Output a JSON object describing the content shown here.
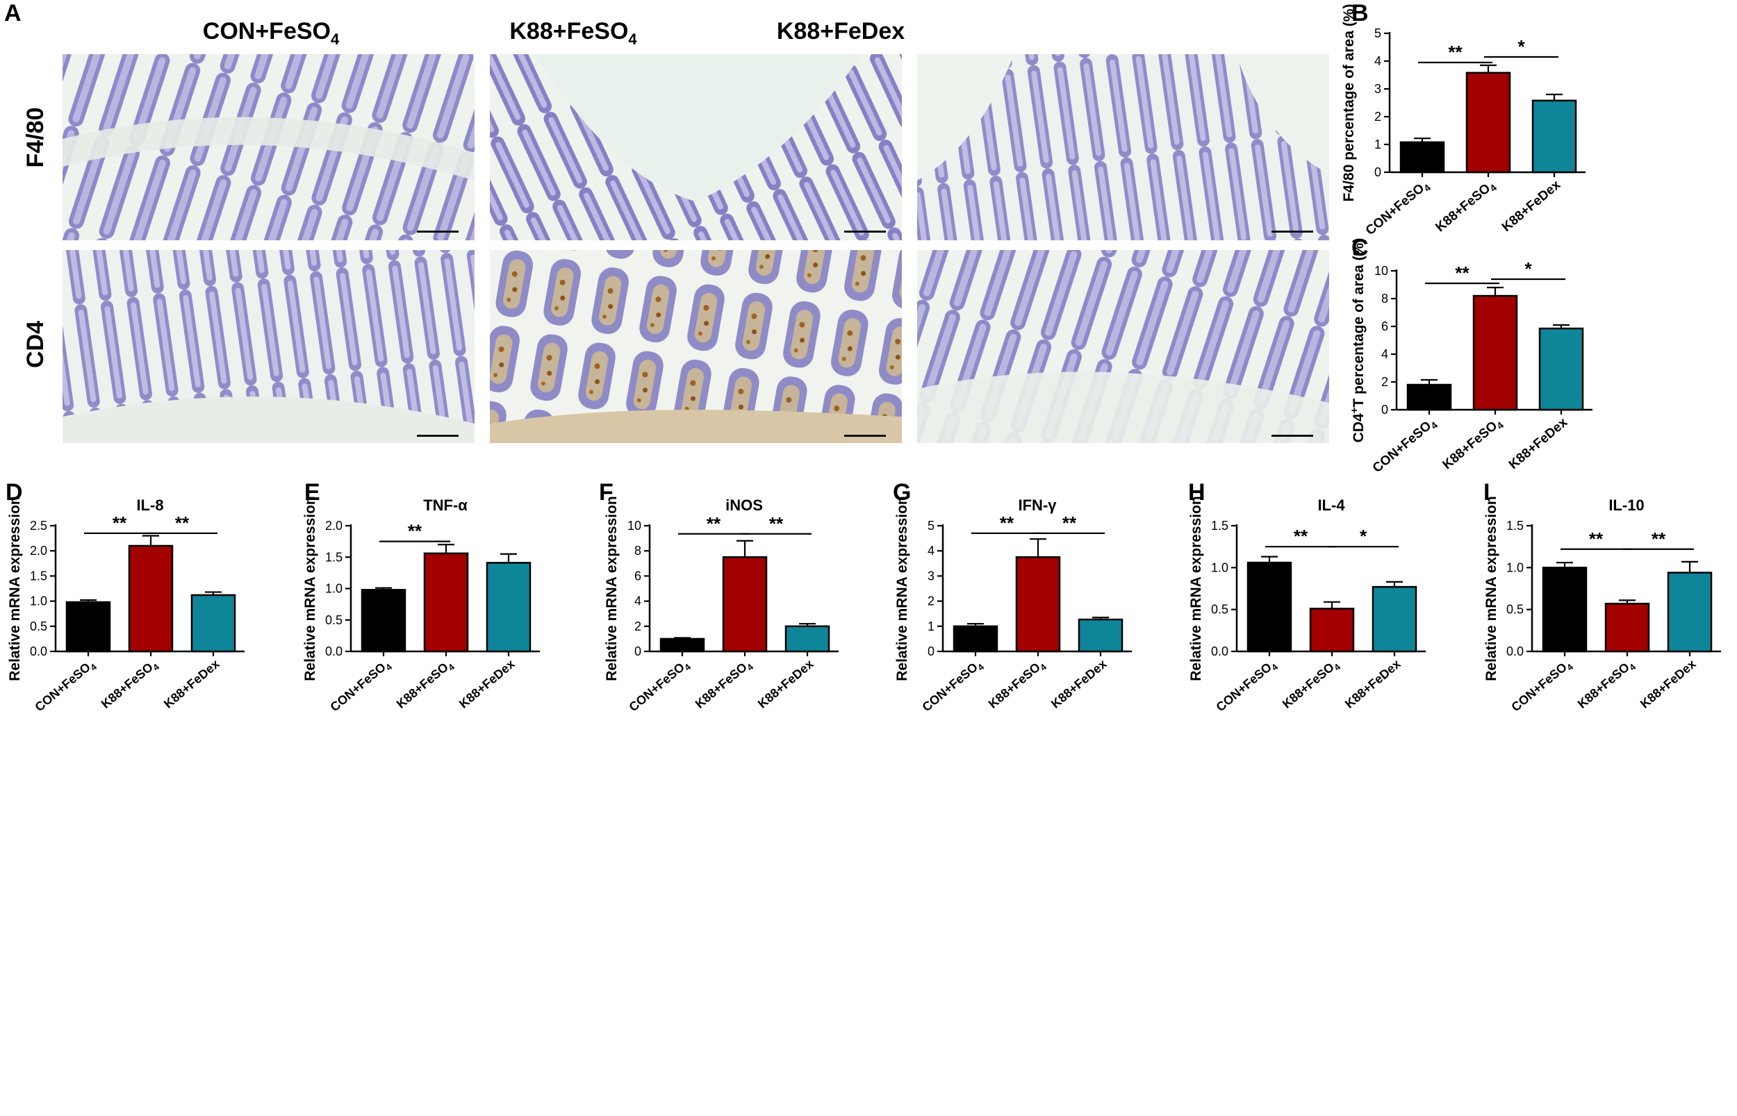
{
  "panel_letters": {
    "A": "A",
    "B": "B",
    "C": "C",
    "D": "D",
    "E": "E",
    "F": "F",
    "G": "G",
    "H": "H",
    "I": "I"
  },
  "panel_A": {
    "column_titles": [
      "CON+FeSO",
      "K88+FeSO",
      "K88+FeDex"
    ],
    "column_title_subscripts": [
      "4",
      "4",
      ""
    ],
    "row_labels": [
      "F4/80",
      "CD4"
    ]
  },
  "colors": {
    "CON+FeSO4": "#000000",
    "K88+FeSO4": "#a30000",
    "K88+FeDex": "#0e8598",
    "tissue_background": "#eef3ee",
    "tissue_purple": "#8a86c8",
    "dab_brown": "#9c6220"
  },
  "chart_data": [
    {
      "id": "B",
      "type": "bar",
      "categories": [
        "CON+FeSO4",
        "K88+FeSO4",
        "K88+FeDex"
      ],
      "tick_labels": [
        {
          "main": "CON+FeSO",
          "sub": "4"
        },
        {
          "main": "K88+FeSO",
          "sub": "4"
        },
        {
          "main": "K88+FeDex",
          "sub": ""
        }
      ],
      "values": [
        1.08,
        3.58,
        2.58
      ],
      "errors": [
        0.14,
        0.27,
        0.22
      ],
      "title": "",
      "ylabel": "F4/80 percentage of area (%)",
      "ylim": [
        0,
        5
      ],
      "yticks": [
        0,
        1,
        2,
        3,
        4,
        5
      ],
      "ytick_labels": [
        "0",
        "1",
        "2",
        "3",
        "4",
        "5"
      ],
      "significance": [
        {
          "from": 0,
          "to": 1,
          "label": "**",
          "y": 3.95
        },
        {
          "from": 1,
          "to": 2,
          "label": "*",
          "y": 4.15
        }
      ]
    },
    {
      "id": "C",
      "type": "bar",
      "categories": [
        "CON+FeSO4",
        "K88+FeSO4",
        "K88+FeDex"
      ],
      "tick_labels": [
        {
          "main": "CON+FeSO",
          "sub": "4"
        },
        {
          "main": "K88+FeSO",
          "sub": "4"
        },
        {
          "main": "K88+FeDex",
          "sub": ""
        }
      ],
      "values": [
        1.8,
        8.2,
        5.85
      ],
      "errors": [
        0.35,
        0.6,
        0.25
      ],
      "title": "",
      "ylabel": "CD4+T percentage of area (%)",
      "ylabel_parts": {
        "before": "CD4",
        "sup": "+",
        "after": "T percentage of area (%)"
      },
      "ylim": [
        0,
        10
      ],
      "yticks": [
        0,
        2,
        4,
        6,
        8,
        10
      ],
      "ytick_labels": [
        "0",
        "2",
        "4",
        "6",
        "8",
        "10"
      ],
      "significance": [
        {
          "from": 0,
          "to": 1,
          "label": "**",
          "y": 9.1
        },
        {
          "from": 1,
          "to": 2,
          "label": "*",
          "y": 9.4
        }
      ]
    },
    {
      "id": "D",
      "type": "bar",
      "categories": [
        "CON+FeSO4",
        "K88+FeSO4",
        "K88+FeDex"
      ],
      "tick_labels": [
        {
          "main": "CON+FeSO",
          "sub": "4"
        },
        {
          "main": "K88+FeSO",
          "sub": "4"
        },
        {
          "main": "K88+FeDex",
          "sub": ""
        }
      ],
      "values": [
        0.98,
        2.1,
        1.12
      ],
      "errors": [
        0.04,
        0.2,
        0.06
      ],
      "title": "IL-8",
      "ylabel": "Relative mRNA expression",
      "ylim": [
        0,
        2.5
      ],
      "yticks": [
        0,
        0.5,
        1,
        1.5,
        2,
        2.5
      ],
      "ytick_labels": [
        "0.0",
        "0.5",
        "1.0",
        "1.5",
        "2.0",
        "2.5"
      ],
      "significance": [
        {
          "from": 0,
          "to": 1,
          "label": "**",
          "y": 2.35
        },
        {
          "from": 1,
          "to": 2,
          "label": "**",
          "y": 2.35
        }
      ]
    },
    {
      "id": "E",
      "type": "bar",
      "categories": [
        "CON+FeSO4",
        "K88+FeSO4",
        "K88+FeDex"
      ],
      "tick_labels": [
        {
          "main": "CON+FeSO",
          "sub": "4"
        },
        {
          "main": "K88+FeSO",
          "sub": "4"
        },
        {
          "main": "K88+FeDex",
          "sub": ""
        }
      ],
      "values": [
        0.98,
        1.56,
        1.41
      ],
      "errors": [
        0.03,
        0.14,
        0.14
      ],
      "title": "TNF-α",
      "ylabel": "Relative mRNA expression",
      "ylim": [
        0,
        2.0
      ],
      "yticks": [
        0,
        0.5,
        1,
        1.5,
        2
      ],
      "ytick_labels": [
        "0.0",
        "0.5",
        "1.0",
        "1.5",
        "2.0"
      ],
      "significance": [
        {
          "from": 0,
          "to": 1,
          "label": "**",
          "y": 1.75
        }
      ]
    },
    {
      "id": "F",
      "type": "bar",
      "categories": [
        "CON+FeSO4",
        "K88+FeSO4",
        "K88+FeDex"
      ],
      "tick_labels": [
        {
          "main": "CON+FeSO",
          "sub": "4"
        },
        {
          "main": "K88+FeSO",
          "sub": "4"
        },
        {
          "main": "K88+FeDex",
          "sub": ""
        }
      ],
      "values": [
        1.0,
        7.5,
        2.0
      ],
      "errors": [
        0.08,
        1.3,
        0.2
      ],
      "title": "iNOS",
      "ylabel": "Relative mRNA expression",
      "ylim": [
        0,
        10
      ],
      "yticks": [
        0,
        2,
        4,
        6,
        8,
        10
      ],
      "ytick_labels": [
        "0",
        "2",
        "4",
        "6",
        "8",
        "10"
      ],
      "significance": [
        {
          "from": 0,
          "to": 1,
          "label": "**",
          "y": 9.35
        },
        {
          "from": 1,
          "to": 2,
          "label": "**",
          "y": 9.35
        }
      ]
    },
    {
      "id": "G",
      "type": "bar",
      "categories": [
        "CON+FeSO4",
        "K88+FeSO4",
        "K88+FeDex"
      ],
      "tick_labels": [
        {
          "main": "CON+FeSO",
          "sub": "4"
        },
        {
          "main": "K88+FeSO",
          "sub": "4"
        },
        {
          "main": "K88+FeDex",
          "sub": ""
        }
      ],
      "values": [
        1.0,
        3.75,
        1.27
      ],
      "errors": [
        0.1,
        0.72,
        0.08
      ],
      "title": "IFN-γ",
      "ylabel": "Relative mRNA expression",
      "ylim": [
        0,
        5
      ],
      "yticks": [
        0,
        1,
        2,
        3,
        4,
        5
      ],
      "ytick_labels": [
        "0",
        "1",
        "2",
        "3",
        "4",
        "5"
      ],
      "significance": [
        {
          "from": 0,
          "to": 1,
          "label": "**",
          "y": 4.7
        },
        {
          "from": 1,
          "to": 2,
          "label": "**",
          "y": 4.7
        }
      ]
    },
    {
      "id": "H",
      "type": "bar",
      "categories": [
        "CON+FeSO4",
        "K88+FeSO4",
        "K88+FeDex"
      ],
      "tick_labels": [
        {
          "main": "CON+FeSO",
          "sub": "4"
        },
        {
          "main": "K88+FeSO",
          "sub": "4"
        },
        {
          "main": "K88+FeDex",
          "sub": ""
        }
      ],
      "values": [
        1.06,
        0.51,
        0.77
      ],
      "errors": [
        0.07,
        0.08,
        0.06
      ],
      "title": "IL-4",
      "ylabel": "Relative mRNA expression",
      "ylim": [
        0,
        1.5
      ],
      "yticks": [
        0,
        0.5,
        1,
        1.5
      ],
      "ytick_labels": [
        "0.0",
        "0.5",
        "1.0",
        "1.5"
      ],
      "significance": [
        {
          "from": 0,
          "to": 1,
          "label": "**",
          "y": 1.25
        },
        {
          "from": 1,
          "to": 2,
          "label": "*",
          "y": 1.25
        }
      ]
    },
    {
      "id": "I",
      "type": "bar",
      "categories": [
        "CON+FeSO4",
        "K88+FeSO4",
        "K88+FeDex"
      ],
      "tick_labels": [
        {
          "main": "CON+FeSO",
          "sub": "4"
        },
        {
          "main": "K88+FeSO",
          "sub": "4"
        },
        {
          "main": "K88+FeDex",
          "sub": ""
        }
      ],
      "values": [
        1.0,
        0.57,
        0.94
      ],
      "errors": [
        0.06,
        0.04,
        0.13
      ],
      "title": "IL-10",
      "ylabel": "Relative mRNA expression",
      "ylim": [
        0,
        1.5
      ],
      "yticks": [
        0,
        0.5,
        1,
        1.5
      ],
      "ytick_labels": [
        "0.0",
        "0.5",
        "1.0",
        "1.5"
      ],
      "significance": [
        {
          "from": 0,
          "to": 1,
          "label": "**",
          "y": 1.22
        },
        {
          "from": 1,
          "to": 2,
          "label": "**",
          "y": 1.22
        }
      ]
    }
  ]
}
